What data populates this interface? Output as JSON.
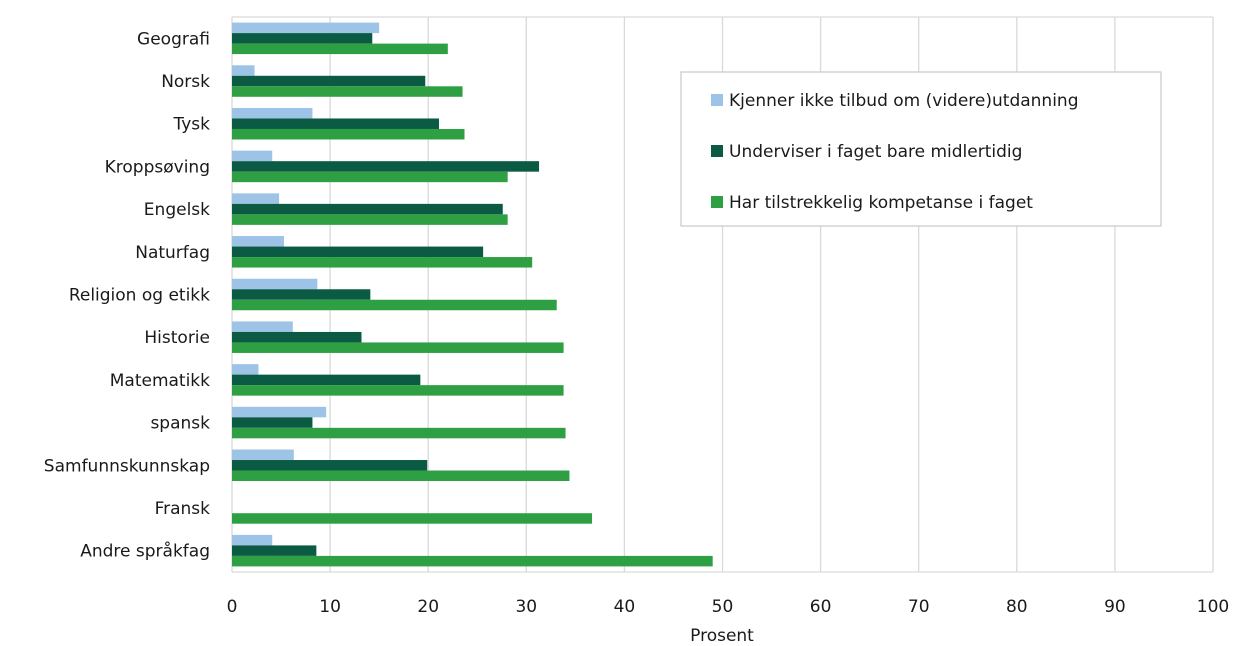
{
  "chart_data": {
    "type": "bar",
    "orientation": "horizontal",
    "categories": [
      "Geografi",
      "Norsk",
      "Tysk",
      "Kroppsøving",
      "Engelsk",
      "Naturfag",
      "Religion og etikk",
      "Historie",
      "Matematikk",
      "spansk",
      "Samfunnskunnskap",
      "Fransk",
      "Andre språkfag"
    ],
    "series": [
      {
        "name": "Kjenner ikke tilbud om (videre)utdanning",
        "color": "#9DC3E6",
        "values": [
          15.0,
          2.3,
          8.2,
          4.1,
          4.8,
          5.3,
          8.7,
          6.2,
          2.7,
          9.6,
          6.3,
          0,
          4.1
        ]
      },
      {
        "name": "Underviser i faget bare midlertidig",
        "color": "#0B5B44",
        "values": [
          14.3,
          19.7,
          21.1,
          31.3,
          27.6,
          25.6,
          14.1,
          13.2,
          19.2,
          8.2,
          19.9,
          0,
          8.6
        ]
      },
      {
        "name": "Har tilstrekkelig kompetanse i faget",
        "color": "#2EA043",
        "values": [
          22.0,
          23.5,
          23.7,
          28.1,
          28.1,
          30.6,
          33.1,
          33.8,
          33.8,
          34.0,
          34.4,
          36.7,
          49.0
        ]
      }
    ],
    "xlabel": "Prosent",
    "ylabel": "",
    "xlim": [
      0,
      100
    ],
    "xticks": [
      "0",
      "10",
      "20",
      "30",
      "40",
      "50",
      "60",
      "70",
      "80",
      "90",
      "100"
    ],
    "grid": true,
    "legend_position": "top-right"
  }
}
